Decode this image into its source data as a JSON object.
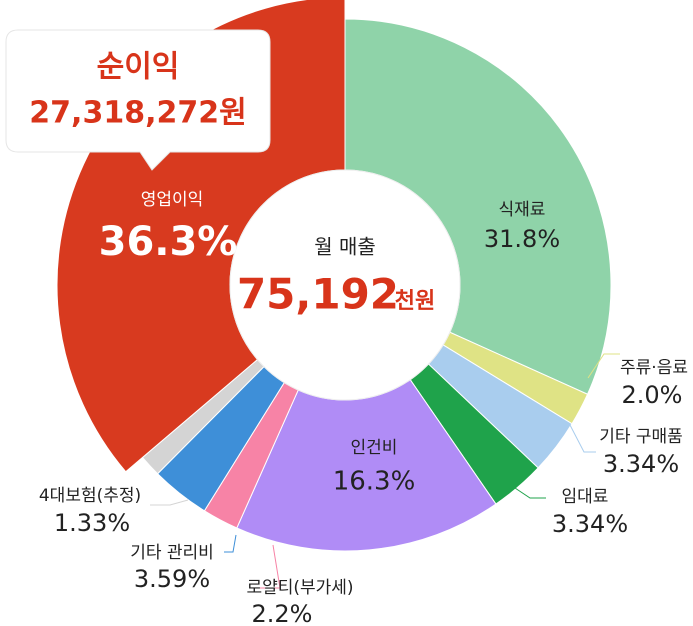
{
  "chart_data": {
    "type": "pie",
    "categories": [
      "식재료",
      "주류·음료",
      "기타 구매품",
      "임대료",
      "인건비",
      "로얄티(부가세)",
      "기타 관리비",
      "4대보험(추정)",
      "영업이익"
    ],
    "values": [
      31.8,
      2.0,
      3.34,
      3.34,
      16.3,
      2.2,
      3.59,
      1.33,
      36.3
    ],
    "value_labels": [
      "31.8%",
      "2.0%",
      "3.34%",
      "3.34%",
      "16.3%",
      "2.2%",
      "3.59%",
      "1.33%",
      "36.3%"
    ],
    "colors": [
      "#8fd3a9",
      "#dfe385",
      "#a9cdee",
      "#1fa34b",
      "#b08cf6",
      "#f783a6",
      "#3e8fd8",
      "#d4d4d4",
      "#d83a1f"
    ],
    "center_label": "월 매출",
    "center_value": "75,192",
    "center_unit": "천원",
    "callout_title": "순이익",
    "callout_value": "27,318,272원"
  }
}
